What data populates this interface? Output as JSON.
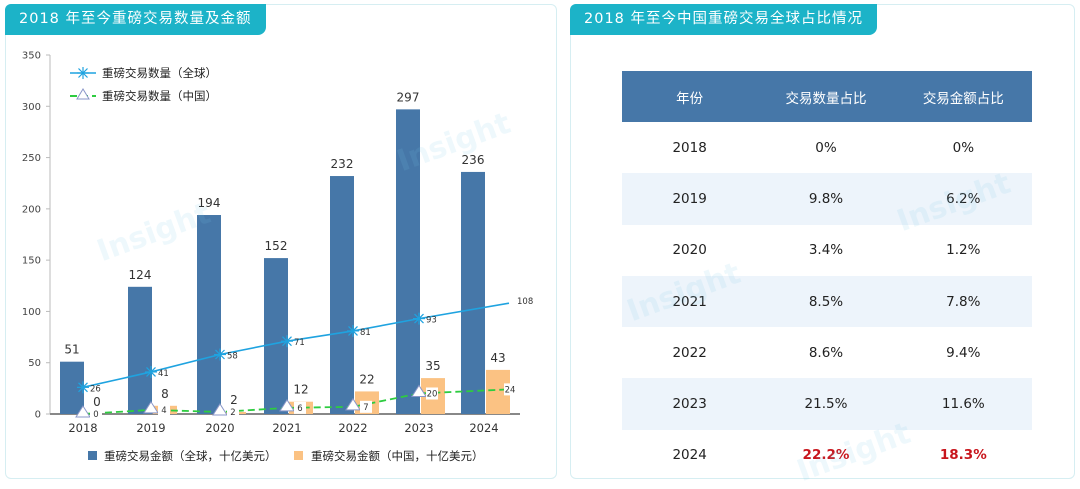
{
  "left_panel": {
    "title": "2018 年至今重磅交易数量及金额"
  },
  "right_panel": {
    "title": "2018 年至今中国重磅交易全球占比情况",
    "table": {
      "headers": [
        "年份",
        "交易数量占比",
        "交易金额占比"
      ],
      "rows": [
        [
          "2018",
          "0%",
          "0%"
        ],
        [
          "2019",
          "9.8%",
          "6.2%"
        ],
        [
          "2020",
          "3.4%",
          "1.2%"
        ],
        [
          "2021",
          "8.5%",
          "7.8%"
        ],
        [
          "2022",
          "8.6%",
          "9.4%"
        ],
        [
          "2023",
          "21.5%",
          "11.6%"
        ],
        [
          "2024",
          "22.2%",
          "18.3%"
        ]
      ],
      "highlight_color": "#c8161d"
    }
  },
  "watermark": "Insight",
  "chart_data": {
    "type": "bar",
    "title": "2018 年至今重磅交易数量及金额",
    "categories": [
      "2018",
      "2019",
      "2020",
      "2021",
      "2022",
      "2023",
      "2024"
    ],
    "ylim": [
      0,
      350
    ],
    "yticks": [
      "0",
      "50",
      "100",
      "150",
      "200",
      "250",
      "300",
      "350"
    ],
    "series": [
      {
        "name": "重磅交易金额（全球，十亿美元）",
        "type": "bar",
        "color": "#4677a8",
        "values": [
          51,
          124,
          194,
          152,
          232,
          297,
          236
        ]
      },
      {
        "name": "重磅交易金额（中国，十亿美元）",
        "type": "bar",
        "color": "#fbc283",
        "values": [
          0,
          8,
          2,
          12,
          22,
          35,
          43
        ]
      },
      {
        "name": "重磅交易数量（全球）",
        "type": "line",
        "color": "#1fa3e0",
        "marker": "asterisk",
        "values": [
          26,
          41,
          58,
          71,
          81,
          93,
          108
        ]
      },
      {
        "name": "重磅交易数量（中国）",
        "type": "line",
        "color": "#2ecc40",
        "marker": "triangle",
        "dashed": true,
        "values": [
          0,
          4,
          2,
          6,
          7,
          20,
          24
        ]
      }
    ],
    "legend": {
      "lines": "top-left",
      "bars": "bottom"
    }
  }
}
